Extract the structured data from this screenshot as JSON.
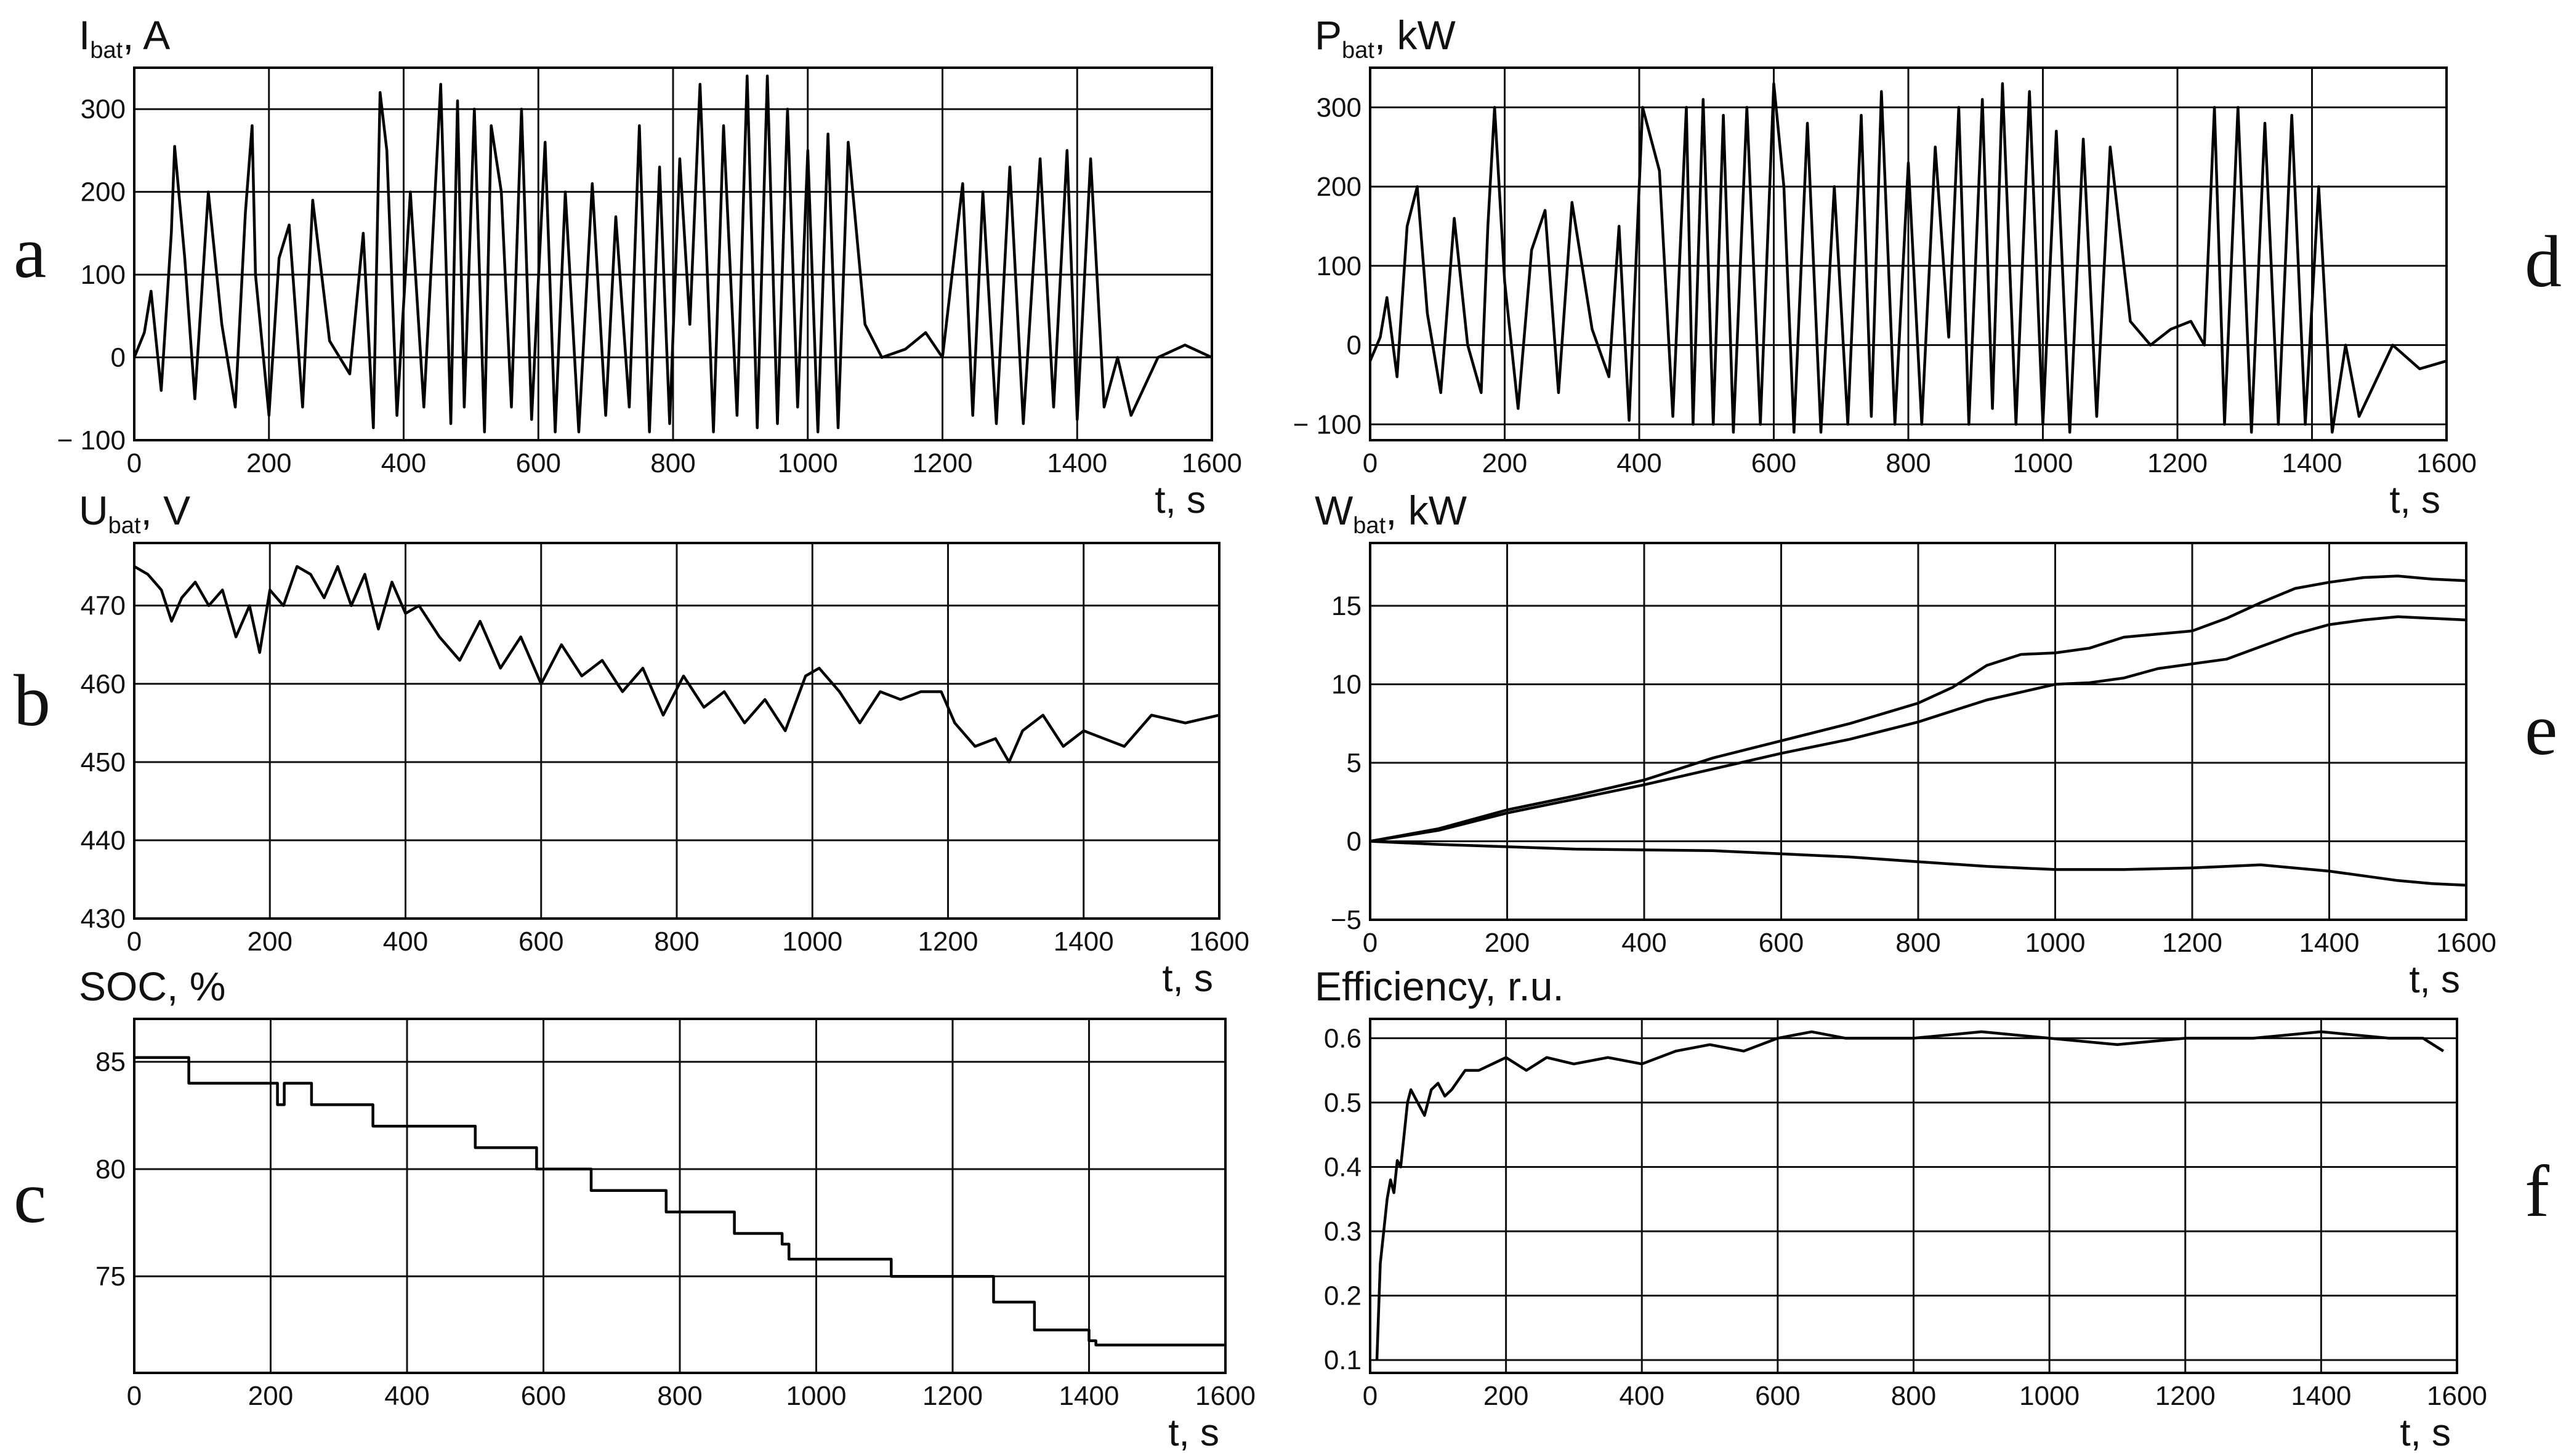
{
  "figure": {
    "panel_letters": [
      "a",
      "b",
      "c",
      "d",
      "e",
      "f"
    ]
  },
  "chart_data": [
    {
      "id": "a",
      "type": "line",
      "ylabel_main": "I",
      "ylabel_sub": "bat",
      "ylabel_rest": ", A",
      "xlabel": "t, s",
      "xlim": [
        0,
        1600
      ],
      "ylim": [
        -100,
        350
      ],
      "xticks": [
        0,
        200,
        400,
        600,
        800,
        1000,
        1200,
        1400,
        1600
      ],
      "xtick_labels": [
        "0",
        "200",
        "400",
        "600",
        "800",
        "1000",
        "1200",
        "1400",
        "1600"
      ],
      "yticks": [
        -100,
        0,
        100,
        200,
        300
      ],
      "ytick_labels": [
        "− 100",
        "0",
        "100",
        "200",
        "300"
      ],
      "grid": true,
      "series": [
        {
          "x": [
            0,
            15,
            25,
            40,
            55,
            60,
            75,
            90,
            110,
            130,
            150,
            165,
            175,
            180,
            200,
            215,
            230,
            250,
            265,
            290,
            320,
            340,
            355,
            365,
            375,
            390,
            410,
            430,
            455,
            470,
            480,
            490,
            505,
            520,
            530,
            545,
            560,
            575,
            590,
            610,
            625,
            640,
            660,
            680,
            700,
            715,
            735,
            750,
            765,
            780,
            795,
            810,
            825,
            840,
            860,
            875,
            895,
            910,
            925,
            940,
            955,
            970,
            985,
            1000,
            1015,
            1030,
            1045,
            1060,
            1085,
            1110,
            1145,
            1175,
            1200,
            1230,
            1245,
            1260,
            1280,
            1300,
            1320,
            1345,
            1365,
            1385,
            1400,
            1420,
            1440,
            1460,
            1480,
            1520,
            1560,
            1600
          ],
          "y": [
            0,
            30,
            80,
            -40,
            150,
            255,
            120,
            -50,
            200,
            40,
            -60,
            175,
            280,
            100,
            -70,
            120,
            160,
            -60,
            190,
            20,
            -20,
            150,
            -85,
            320,
            250,
            -70,
            200,
            -60,
            330,
            -80,
            310,
            -60,
            300,
            -90,
            280,
            200,
            -60,
            300,
            -75,
            260,
            -90,
            200,
            -90,
            210,
            -70,
            170,
            -60,
            280,
            -90,
            230,
            -80,
            240,
            40,
            330,
            -90,
            280,
            -70,
            340,
            -85,
            340,
            -80,
            300,
            -60,
            250,
            -90,
            270,
            -85,
            260,
            40,
            0,
            10,
            30,
            0,
            210,
            -70,
            200,
            -80,
            230,
            -80,
            240,
            -60,
            250,
            -75,
            240,
            -60,
            0,
            -70,
            0,
            15,
            0
          ]
        }
      ]
    },
    {
      "id": "b",
      "type": "line",
      "ylabel_main": "U",
      "ylabel_sub": "bat",
      "ylabel_rest": ", V",
      "xlabel": "t, s",
      "xlim": [
        0,
        1600
      ],
      "ylim": [
        430,
        478
      ],
      "xticks": [
        0,
        200,
        400,
        600,
        800,
        1000,
        1200,
        1400,
        1600
      ],
      "xtick_labels": [
        "0",
        "200",
        "400",
        "600",
        "800",
        "1000",
        "1200",
        "1400",
        "1600"
      ],
      "yticks": [
        430,
        440,
        450,
        460,
        470
      ],
      "ytick_labels": [
        "430",
        "440",
        "450",
        "460",
        "470"
      ],
      "grid": true,
      "series": [
        {
          "x": [
            0,
            20,
            40,
            55,
            70,
            90,
            110,
            130,
            150,
            170,
            185,
            200,
            220,
            240,
            260,
            280,
            300,
            320,
            340,
            360,
            380,
            400,
            420,
            450,
            480,
            510,
            540,
            570,
            600,
            630,
            660,
            690,
            720,
            750,
            780,
            810,
            840,
            870,
            900,
            930,
            960,
            990,
            1010,
            1040,
            1070,
            1100,
            1130,
            1160,
            1190,
            1210,
            1240,
            1270,
            1290,
            1310,
            1340,
            1370,
            1400,
            1430,
            1460,
            1500,
            1550,
            1600
          ],
          "y": [
            475,
            474,
            472,
            468,
            471,
            473,
            470,
            472,
            466,
            470,
            464,
            472,
            470,
            475,
            474,
            471,
            475,
            470,
            474,
            467,
            473,
            469,
            470,
            466,
            463,
            468,
            462,
            466,
            460,
            465,
            461,
            463,
            459,
            462,
            456,
            461,
            457,
            459,
            455,
            458,
            454,
            461,
            462,
            459,
            455,
            459,
            458,
            459,
            459,
            455,
            452,
            453,
            450,
            454,
            456,
            452,
            454,
            453,
            452,
            456,
            455,
            456
          ]
        }
      ]
    },
    {
      "id": "c",
      "type": "line",
      "ylabel": "SOC, %",
      "xlabel": "t, s",
      "xlim": [
        0,
        1600
      ],
      "ylim": [
        70.5,
        87
      ],
      "xticks": [
        0,
        200,
        400,
        600,
        800,
        1000,
        1200,
        1400,
        1600
      ],
      "xtick_labels": [
        "0",
        "200",
        "400",
        "600",
        "800",
        "1000",
        "1200",
        "1400",
        "1600"
      ],
      "yticks": [
        75,
        80,
        85
      ],
      "ytick_labels": [
        "75",
        "80",
        "85"
      ],
      "grid": true,
      "series": [
        {
          "x": [
            0,
            80,
            80,
            210,
            210,
            220,
            220,
            230,
            230,
            260,
            260,
            350,
            350,
            500,
            500,
            510,
            510,
            590,
            590,
            670,
            670,
            780,
            780,
            880,
            880,
            950,
            950,
            960,
            960,
            1110,
            1110,
            1260,
            1260,
            1320,
            1320,
            1400,
            1400,
            1410,
            1410,
            1600
          ],
          "y": [
            85.2,
            85.2,
            84,
            84,
            83,
            83,
            84,
            84,
            84,
            84,
            83,
            83,
            82,
            82,
            81,
            81,
            81,
            81,
            80,
            80,
            79,
            79,
            78,
            78,
            77,
            77,
            76.5,
            76.5,
            75.8,
            75.8,
            75,
            75,
            73.8,
            73.8,
            72.5,
            72.5,
            72,
            72,
            71.8,
            71.8
          ]
        }
      ]
    },
    {
      "id": "d",
      "type": "line",
      "ylabel_main": "P",
      "ylabel_sub": "bat",
      "ylabel_rest": ", kW",
      "xlabel": "t, s",
      "xlim": [
        0,
        1600
      ],
      "ylim": [
        -120,
        350
      ],
      "xticks": [
        0,
        200,
        400,
        600,
        800,
        1000,
        1200,
        1400,
        1600
      ],
      "xtick_labels": [
        "0",
        "200",
        "400",
        "600",
        "800",
        "1000",
        "1200",
        "1400",
        "1600"
      ],
      "yticks": [
        -100,
        0,
        100,
        200,
        300
      ],
      "ytick_labels": [
        "− 100",
        "0",
        "100",
        "200",
        "300"
      ],
      "grid": true,
      "series": [
        {
          "x": [
            0,
            15,
            25,
            40,
            55,
            70,
            85,
            105,
            125,
            145,
            165,
            175,
            185,
            200,
            220,
            240,
            260,
            280,
            300,
            330,
            355,
            370,
            385,
            405,
            430,
            450,
            470,
            480,
            495,
            510,
            525,
            540,
            560,
            580,
            600,
            615,
            630,
            650,
            670,
            690,
            710,
            730,
            745,
            760,
            780,
            800,
            820,
            840,
            860,
            875,
            890,
            910,
            925,
            940,
            960,
            980,
            1000,
            1020,
            1040,
            1060,
            1080,
            1100,
            1130,
            1160,
            1190,
            1220,
            1240,
            1255,
            1270,
            1290,
            1310,
            1330,
            1350,
            1370,
            1390,
            1410,
            1430,
            1450,
            1470,
            1520,
            1560,
            1600
          ],
          "y": [
            -20,
            10,
            60,
            -40,
            150,
            200,
            40,
            -60,
            160,
            0,
            -60,
            150,
            300,
            80,
            -80,
            120,
            170,
            -60,
            180,
            20,
            -40,
            150,
            -95,
            300,
            220,
            -90,
            300,
            -100,
            310,
            -100,
            290,
            -110,
            300,
            -100,
            330,
            200,
            -110,
            280,
            -110,
            200,
            -100,
            290,
            -90,
            320,
            -100,
            230,
            -100,
            250,
            10,
            300,
            -100,
            310,
            -80,
            330,
            -100,
            320,
            -100,
            270,
            -110,
            260,
            -90,
            250,
            30,
            0,
            20,
            30,
            0,
            300,
            -100,
            300,
            -110,
            280,
            -100,
            290,
            -100,
            200,
            -110,
            0,
            -90,
            0,
            -30,
            -20
          ]
        }
      ]
    },
    {
      "id": "e",
      "type": "line",
      "ylabel_main": "W",
      "ylabel_sub": "bat",
      "ylabel_rest": ", kW",
      "xlabel": "t, s",
      "xlim": [
        0,
        1600
      ],
      "ylim": [
        -5,
        19
      ],
      "xticks": [
        0,
        200,
        400,
        600,
        800,
        1000,
        1200,
        1400,
        1600
      ],
      "xtick_labels": [
        "0",
        "200",
        "400",
        "600",
        "800",
        "1000",
        "1200",
        "1400",
        "1600"
      ],
      "yticks": [
        -5,
        0,
        5,
        10,
        15
      ],
      "ytick_labels": [
        "−5",
        "0",
        "5",
        "10",
        "15"
      ],
      "grid": true,
      "series": [
        {
          "x": [
            0,
            100,
            200,
            300,
            400,
            500,
            600,
            700,
            800,
            850,
            900,
            950,
            1000,
            1050,
            1100,
            1150,
            1200,
            1250,
            1300,
            1350,
            1400,
            1450,
            1500,
            1550,
            1600
          ],
          "y": [
            0,
            0.8,
            2,
            2.9,
            3.9,
            5.3,
            6.4,
            7.5,
            8.8,
            9.8,
            11.2,
            11.9,
            12,
            12.3,
            13,
            13.2,
            13.4,
            14.2,
            15.2,
            16.1,
            16.5,
            16.8,
            16.9,
            16.7,
            16.6
          ]
        },
        {
          "x": [
            0,
            100,
            200,
            300,
            400,
            500,
            600,
            700,
            800,
            850,
            900,
            950,
            1000,
            1050,
            1100,
            1150,
            1200,
            1250,
            1300,
            1350,
            1400,
            1450,
            1500,
            1550,
            1600
          ],
          "y": [
            0,
            0.7,
            1.8,
            2.7,
            3.6,
            4.6,
            5.6,
            6.5,
            7.6,
            8.3,
            9,
            9.5,
            10,
            10.1,
            10.4,
            11,
            11.3,
            11.6,
            12.4,
            13.2,
            13.8,
            14.1,
            14.3,
            14.2,
            14.1
          ]
        },
        {
          "x": [
            0,
            100,
            200,
            300,
            400,
            500,
            600,
            700,
            800,
            900,
            1000,
            1100,
            1200,
            1300,
            1400,
            1500,
            1550,
            1600
          ],
          "y": [
            0,
            -0.2,
            -0.35,
            -0.5,
            -0.55,
            -0.6,
            -0.8,
            -1,
            -1.3,
            -1.6,
            -1.8,
            -1.8,
            -1.7,
            -1.5,
            -1.9,
            -2.5,
            -2.7,
            -2.8
          ]
        }
      ]
    },
    {
      "id": "f",
      "type": "line",
      "ylabel": "Efficiency, r.u.",
      "xlabel": "t, s",
      "xlim": [
        0,
        1600
      ],
      "ylim": [
        0.08,
        0.63
      ],
      "xticks": [
        0,
        200,
        400,
        600,
        800,
        1000,
        1200,
        1400,
        1600
      ],
      "xtick_labels": [
        "0",
        "200",
        "400",
        "600",
        "800",
        "1000",
        "1200",
        "1400",
        "1600"
      ],
      "yticks": [
        0.1,
        0.2,
        0.3,
        0.4,
        0.5,
        0.6
      ],
      "ytick_labels": [
        "0.1",
        "0.2",
        "0.3",
        "0.4",
        "0.5",
        "0.6"
      ],
      "grid": true,
      "series": [
        {
          "x": [
            10,
            15,
            20,
            25,
            30,
            35,
            40,
            45,
            50,
            55,
            60,
            70,
            80,
            90,
            100,
            110,
            120,
            140,
            160,
            180,
            200,
            230,
            260,
            300,
            350,
            400,
            450,
            500,
            550,
            600,
            650,
            700,
            800,
            900,
            1000,
            1100,
            1200,
            1300,
            1400,
            1500,
            1550,
            1580
          ],
          "y": [
            0.1,
            0.25,
            0.3,
            0.35,
            0.38,
            0.36,
            0.41,
            0.4,
            0.45,
            0.5,
            0.52,
            0.5,
            0.48,
            0.52,
            0.53,
            0.51,
            0.52,
            0.55,
            0.55,
            0.56,
            0.57,
            0.55,
            0.57,
            0.56,
            0.57,
            0.56,
            0.58,
            0.59,
            0.58,
            0.6,
            0.61,
            0.6,
            0.6,
            0.61,
            0.6,
            0.59,
            0.6,
            0.6,
            0.61,
            0.6,
            0.6,
            0.58
          ]
        }
      ]
    }
  ]
}
